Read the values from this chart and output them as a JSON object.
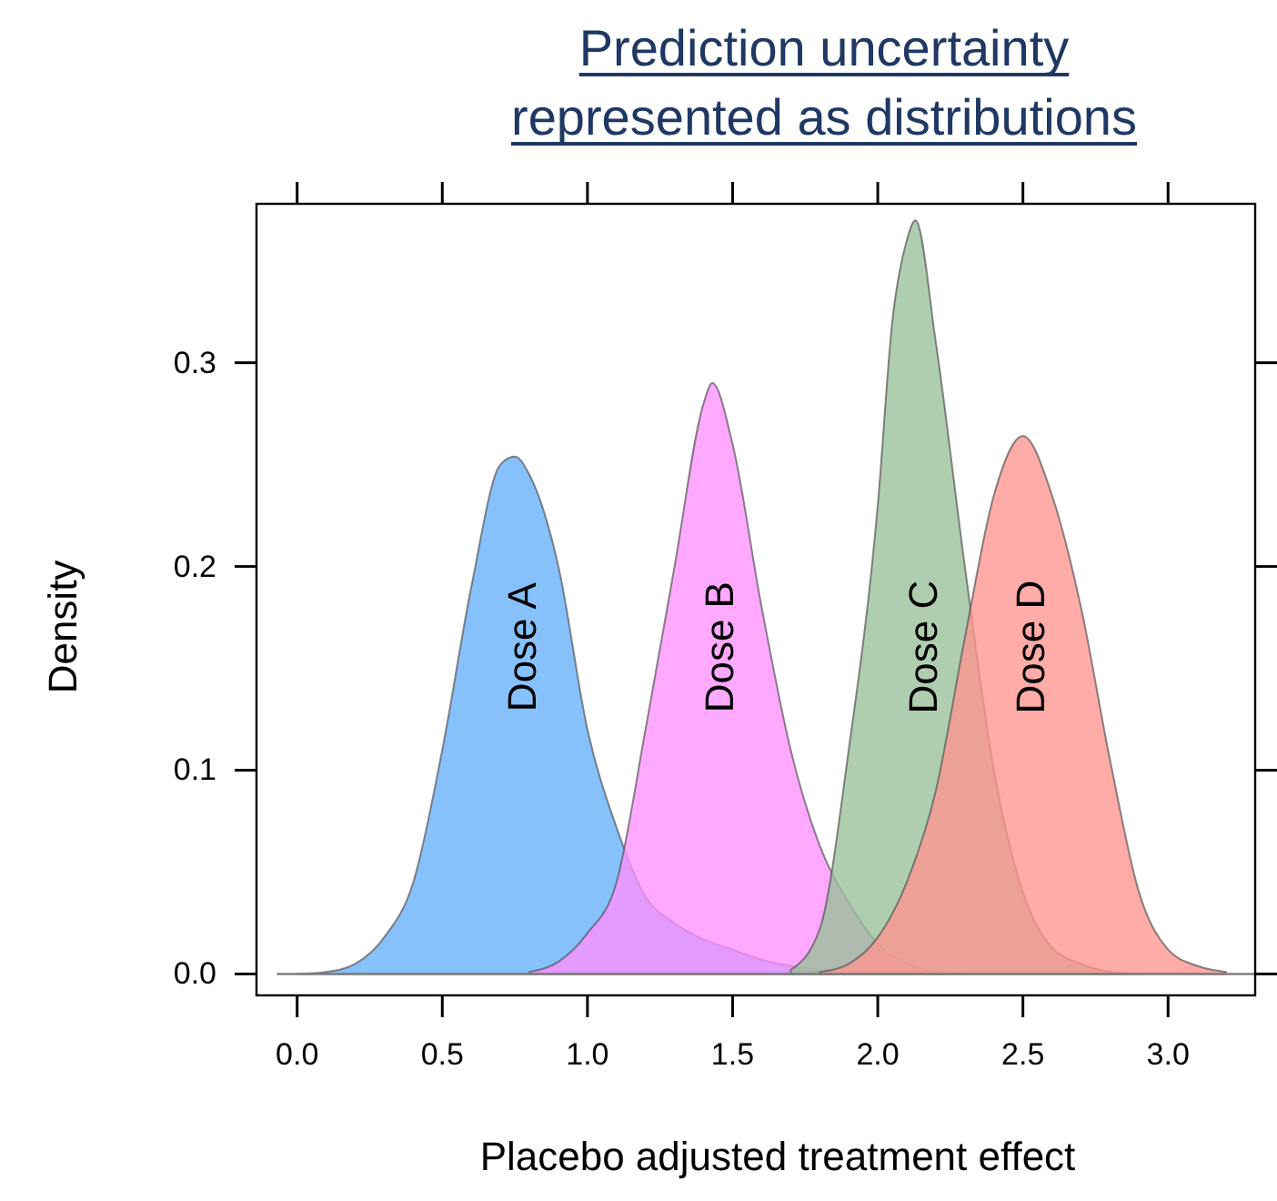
{
  "chart_data": {
    "type": "area",
    "title": "Prediction uncertainty\nrepresented as distributions",
    "xlabel": "Placebo adjusted treatment effect",
    "ylabel": "Density",
    "xlim": [
      -0.14,
      3.3
    ],
    "ylim": [
      -0.0105,
      0.378
    ],
    "xticks": [
      {
        "value": 0,
        "label": "0.0"
      },
      {
        "value": 0.5,
        "label": "0.5"
      },
      {
        "value": 1,
        "label": "1.0"
      },
      {
        "value": 1.5,
        "label": "1.5"
      },
      {
        "value": 2,
        "label": "2.0"
      },
      {
        "value": 2.5,
        "label": "2.5"
      },
      {
        "value": 3,
        "label": "3.0"
      }
    ],
    "yticks": [
      {
        "value": 0,
        "label": "0.0"
      },
      {
        "value": 0.1,
        "label": "0.1"
      },
      {
        "value": 0.2,
        "label": "0.2"
      },
      {
        "value": 0.3,
        "label": "0.3"
      }
    ],
    "grid": false,
    "ref_lines": [
      {
        "axis": "y",
        "value": 0,
        "color": "#808080"
      }
    ],
    "series": [
      {
        "name": "Dose A",
        "color": "#64b0fb",
        "x": [
          0,
          0.1,
          0.2,
          0.3,
          0.4,
          0.5,
          0.6,
          0.7,
          0.75,
          0.8,
          0.9,
          1,
          1.1,
          1.2,
          1.3,
          1.4,
          1.5,
          1.6,
          1.7,
          1.8,
          1.9
        ],
        "values": [
          0,
          0.001,
          0.005,
          0.018,
          0.045,
          0.11,
          0.19,
          0.25,
          0.254,
          0.245,
          0.2,
          0.12,
          0.072,
          0.038,
          0.025,
          0.017,
          0.012,
          0.007,
          0.004,
          0.002,
          0
        ]
      },
      {
        "name": "Dose B",
        "color": "#ff90ff",
        "x": [
          0.8,
          0.9,
          1,
          1.1,
          1.2,
          1.3,
          1.4,
          1.43,
          1.5,
          1.6,
          1.7,
          1.8,
          1.9,
          2,
          2.1,
          2.2,
          2.3
        ],
        "values": [
          0.001,
          0.006,
          0.02,
          0.045,
          0.12,
          0.2,
          0.28,
          0.29,
          0.26,
          0.18,
          0.11,
          0.063,
          0.035,
          0.015,
          0.005,
          0.001,
          0
        ]
      },
      {
        "name": "Dose C",
        "color": "#98c098",
        "x": [
          1.7,
          1.8,
          1.9,
          2,
          2.05,
          2.1,
          2.13,
          2.2,
          2.3,
          2.4,
          2.5,
          2.6,
          2.7,
          2.8,
          2.9
        ],
        "values": [
          0.002,
          0.022,
          0.11,
          0.23,
          0.32,
          0.36,
          0.37,
          0.31,
          0.2,
          0.1,
          0.04,
          0.013,
          0.005,
          0.001,
          0
        ]
      },
      {
        "name": "Dose D",
        "color": "#ff9490",
        "x": [
          1.8,
          1.9,
          2,
          2.1,
          2.2,
          2.3,
          2.4,
          2.5,
          2.6,
          2.7,
          2.8,
          2.9,
          3,
          3.1,
          3.2
        ],
        "values": [
          0.001,
          0.005,
          0.018,
          0.045,
          0.09,
          0.165,
          0.235,
          0.264,
          0.235,
          0.18,
          0.105,
          0.04,
          0.012,
          0.004,
          0.001
        ]
      }
    ]
  }
}
